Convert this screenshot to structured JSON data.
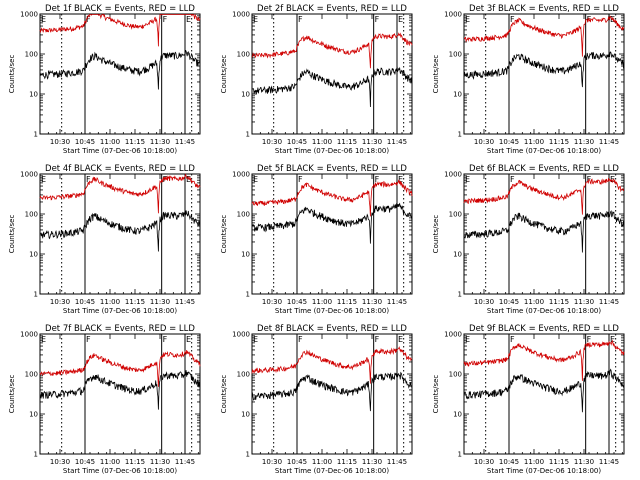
{
  "chart_data": {
    "type": "line",
    "figure": "grid-3x3",
    "x_tick_labels": [
      "10:30",
      "10:45",
      "11:00",
      "11:15",
      "11:30",
      "11:45"
    ],
    "x_ticks_minutes": [
      12,
      27,
      42,
      57,
      72,
      87
    ],
    "xlim_minutes": [
      0,
      96
    ],
    "xlabel": "Start Time (07-Dec-06 10:18:00)",
    "ylabel": "Counts/sec",
    "yscale": "log",
    "ylim": [
      1,
      1000
    ],
    "y_tick_labels": [
      "1",
      "10",
      "100",
      "1000"
    ],
    "series_colors": {
      "events": "#000000",
      "lld": "#d00000"
    },
    "markers": {
      "solid_lines_minutes": [
        27,
        73,
        87
      ],
      "dotted_lines_minutes": [
        13,
        91
      ],
      "flags": [
        {
          "label": "E",
          "x": 0
        },
        {
          "label": "F",
          "x": 27
        },
        {
          "label": "F",
          "x": 73
        },
        {
          "label": "E",
          "x": 87
        }
      ]
    },
    "panels": [
      {
        "title": "Det 1f BLACK = Events, RED = LLD",
        "events_base": 30,
        "lld_base": 380
      },
      {
        "title": "Det 2f BLACK = Events, RED = LLD",
        "events_base": 12,
        "lld_base": 90
      },
      {
        "title": "Det 3f BLACK = Events, RED = LLD",
        "events_base": 30,
        "lld_base": 230
      },
      {
        "title": "Det 4f BLACK = Events, RED = LLD",
        "events_base": 30,
        "lld_base": 250
      },
      {
        "title": "Det 5f BLACK = Events, RED = LLD",
        "events_base": 45,
        "lld_base": 180
      },
      {
        "title": "Det 6f BLACK = Events, RED = LLD",
        "events_base": 30,
        "lld_base": 210
      },
      {
        "title": "Det 7f BLACK = Events, RED = LLD",
        "events_base": 30,
        "lld_base": 100
      },
      {
        "title": "Det 8f BLACK = Events, RED = LLD",
        "events_base": 28,
        "lld_base": 120
      },
      {
        "title": "Det 9f BLACK = Events, RED = LLD",
        "events_base": 30,
        "lld_base": 180
      }
    ],
    "profile": {
      "x": [
        0,
        10,
        20,
        26,
        27,
        30,
        33,
        36,
        40,
        45,
        50,
        55,
        60,
        65,
        68,
        70,
        71,
        72,
        73,
        74,
        75,
        78,
        82,
        86,
        87,
        88,
        90,
        93,
        96
      ],
      "y": [
        1.0,
        1.05,
        1.15,
        1.3,
        1.6,
        2.6,
        3.0,
        2.5,
        2.1,
        1.75,
        1.5,
        1.3,
        1.25,
        1.5,
        1.8,
        2.0,
        0.35,
        2.4,
        2.8,
        3.0,
        3.1,
        3.1,
        3.0,
        3.2,
        3.5,
        3.6,
        3.0,
        2.2,
        1.8
      ]
    }
  }
}
